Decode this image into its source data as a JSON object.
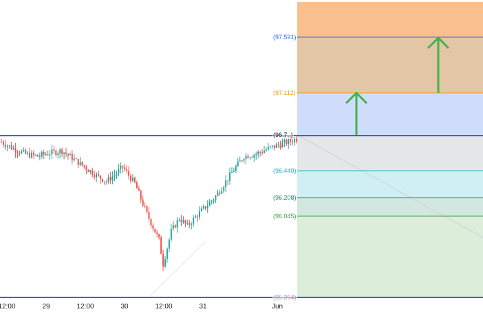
{
  "fib_levels": [
    {
      "value": 97.591,
      "label": "(97.591)",
      "color": "#2962ff",
      "zone_fill": "#e3c6a6"
    },
    {
      "value": 97.112,
      "label": "(97.112)",
      "color": "#f59e0b",
      "zone_fill": "#d0dcfb"
    },
    {
      "value": 96.7,
      "label": "(96.7..)",
      "color": "#131722",
      "zone_fill": "#e5e6e8"
    },
    {
      "value": 96.44,
      "label": "(96.440)",
      "color": "#1bb8c8",
      "zone_fill": "#cfeff3"
    },
    {
      "value": 96.208,
      "label": "(96.208)",
      "color": "#0f8f6f",
      "zone_fill": "#d2e8de"
    },
    {
      "value": 96.045,
      "label": "(96.045)",
      "color": "#43a047",
      "zone_fill": "#dcedd9"
    },
    {
      "value": 95.254,
      "label": "(95.254)",
      "color": "#9a9aa8",
      "zone_fill": ""
    }
  ],
  "top_zone_fill": "#f9c08e",
  "arrow_color": "#43b24a",
  "time_axis": [
    "12:00",
    "29",
    "12:00",
    "30",
    "12:00",
    "31",
    "Jun"
  ],
  "candle_colors": {
    "up": "#26a69a",
    "down": "#ef5350"
  },
  "chart_data": {
    "type": "candlestick",
    "series_shape": [
      [
        0,
        96.68
      ],
      [
        6,
        96.62
      ],
      [
        12,
        96.57
      ],
      [
        18,
        96.55
      ],
      [
        24,
        96.58
      ],
      [
        30,
        96.6
      ],
      [
        36,
        96.52
      ],
      [
        42,
        96.44
      ],
      [
        48,
        96.36
      ],
      [
        52,
        96.32
      ],
      [
        56,
        96.38
      ],
      [
        60,
        96.45
      ],
      [
        66,
        96.3
      ],
      [
        72,
        96.02
      ],
      [
        78,
        95.78
      ],
      [
        80,
        95.56
      ],
      [
        84,
        95.86
      ],
      [
        88,
        95.98
      ],
      [
        92,
        95.91
      ],
      [
        98,
        96.03
      ],
      [
        106,
        96.18
      ],
      [
        114,
        96.4
      ],
      [
        120,
        96.55
      ],
      [
        126,
        96.57
      ],
      [
        132,
        96.62
      ],
      [
        138,
        96.66
      ],
      [
        146,
        96.71
      ]
    ],
    "ylim": [
      95.254,
      96.72
    ]
  }
}
